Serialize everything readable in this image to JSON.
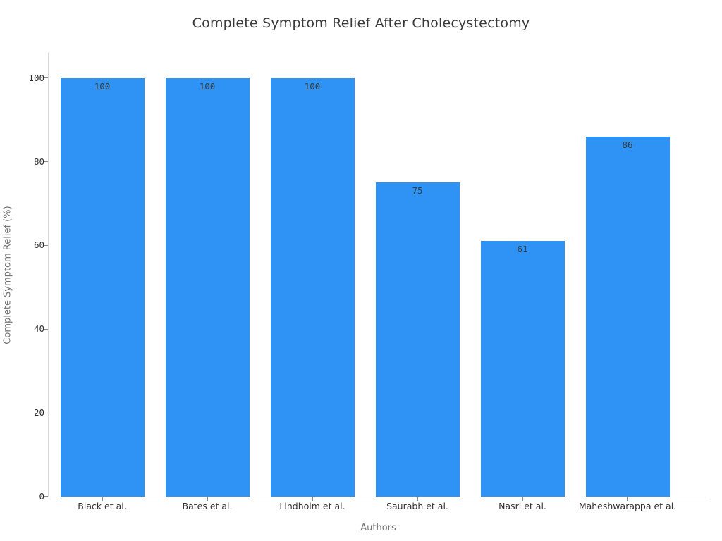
{
  "chart_data": {
    "type": "bar",
    "title": "Complete Symptom Relief After Cholecystectomy",
    "xlabel": "Authors",
    "ylabel": "Complete Symptom Relief (%)",
    "categories": [
      "Black et al.",
      "Bates et al.",
      "Lindholm et al.",
      "Saurabh et al.",
      "Nasri et al.",
      "Maheshwarappa et al."
    ],
    "values": [
      100,
      100,
      100,
      75,
      61,
      86
    ],
    "value_labels": [
      "100",
      "100",
      "100",
      "75",
      "61",
      "86"
    ],
    "yticks": [
      0,
      20,
      40,
      60,
      80,
      100
    ],
    "ylim": [
      0,
      106
    ],
    "grid": false,
    "legend": false,
    "colors": {
      "bar_fill": "#2E93F5",
      "bar_value_label": "#3a3a3a",
      "title_text": "#3a3a3a",
      "tick_label": "#333333",
      "axis_title": "#757575",
      "spine": "#d9d9d9",
      "background": "#ffffff"
    }
  }
}
